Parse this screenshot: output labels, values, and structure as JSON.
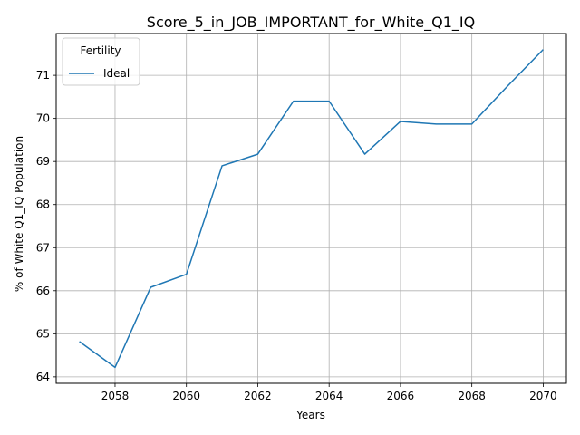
{
  "chart_data": {
    "type": "line",
    "title": "Score_5_in_JOB_IMPORTANT_for_White_Q1_IQ",
    "xlabel": "Years",
    "ylabel": "% of White Q1_IQ Population",
    "xlim": [
      2056.35,
      2070.65
    ],
    "ylim": [
      63.85,
      71.97
    ],
    "x_ticks": [
      2058,
      2060,
      2062,
      2064,
      2066,
      2068,
      2070
    ],
    "y_ticks": [
      64,
      65,
      66,
      67,
      68,
      69,
      70,
      71
    ],
    "grid": true,
    "legend": {
      "title": "Fertility",
      "placement": "top-left"
    },
    "series": [
      {
        "name": "Ideal",
        "color": "#1f77b4",
        "x": [
          2057,
          2058,
          2059,
          2060,
          2061,
          2062,
          2063,
          2064,
          2065,
          2066,
          2067,
          2068,
          2069,
          2070
        ],
        "y": [
          64.82,
          64.22,
          66.08,
          66.38,
          68.9,
          69.17,
          70.4,
          70.4,
          69.17,
          69.93,
          69.87,
          69.87,
          70.75,
          71.6
        ]
      }
    ]
  }
}
